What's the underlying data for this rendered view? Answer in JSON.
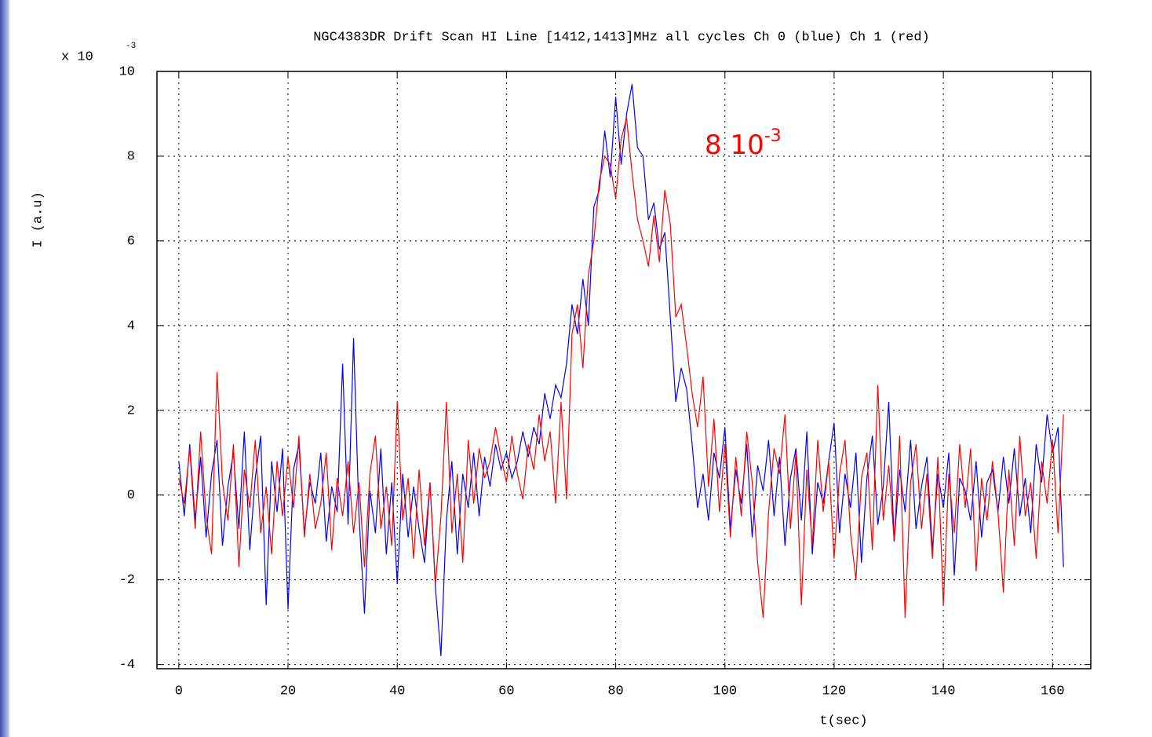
{
  "chart_data": {
    "type": "line",
    "title": "NGC4383DR Drift Scan HI Line [1412,1413]MHz  all cycles Ch 0 (blue) Ch 1 (red)",
    "xlabel": "t(sec)",
    "ylabel": "I (a.u)",
    "y_multiplier": "x 10",
    "y_multiplier_exp": "-3",
    "annotation": "8 10",
    "annotation_exp": "-3",
    "xlim": [
      -4,
      167
    ],
    "ylim": [
      -4.1,
      10
    ],
    "xticks": [
      0,
      20,
      40,
      60,
      80,
      100,
      120,
      140,
      160
    ],
    "yticks": [
      -4,
      -2,
      0,
      2,
      4,
      6,
      8,
      10
    ],
    "grid": true,
    "x": [
      0,
      1,
      2,
      3,
      4,
      5,
      6,
      7,
      8,
      9,
      10,
      11,
      12,
      13,
      14,
      15,
      16,
      17,
      18,
      19,
      20,
      21,
      22,
      23,
      24,
      25,
      26,
      27,
      28,
      29,
      30,
      31,
      32,
      33,
      34,
      35,
      36,
      37,
      38,
      39,
      40,
      41,
      42,
      43,
      44,
      45,
      46,
      47,
      48,
      49,
      50,
      51,
      52,
      53,
      54,
      55,
      56,
      57,
      58,
      59,
      60,
      61,
      62,
      63,
      64,
      65,
      66,
      67,
      68,
      69,
      70,
      71,
      72,
      73,
      74,
      75,
      76,
      77,
      78,
      79,
      80,
      81,
      82,
      83,
      84,
      85,
      86,
      87,
      88,
      89,
      90,
      91,
      92,
      93,
      94,
      95,
      96,
      97,
      98,
      99,
      100,
      101,
      102,
      103,
      104,
      105,
      106,
      107,
      108,
      109,
      110,
      111,
      112,
      113,
      114,
      115,
      116,
      117,
      118,
      119,
      120,
      121,
      122,
      123,
      124,
      125,
      126,
      127,
      128,
      129,
      130,
      131,
      132,
      133,
      134,
      135,
      136,
      137,
      138,
      139,
      140,
      141,
      142,
      143,
      144,
      145,
      146,
      147,
      148,
      149,
      150,
      151,
      152,
      153,
      154,
      155,
      156,
      157,
      158,
      159,
      160,
      161,
      162
    ],
    "series": [
      {
        "color": "#0000ff",
        "values": [
          0.8,
          -0.5,
          1.2,
          -0.6,
          0.9,
          -1.0,
          0.5,
          1.3,
          -1.2,
          0.2,
          1.0,
          -0.8,
          1.5,
          -1.3,
          0.4,
          1.4,
          -2.6,
          0.8,
          -0.4,
          1.1,
          -2.7,
          0.6,
          1.2,
          -0.9,
          0.3,
          -0.2,
          1.0,
          -1.1,
          0.2,
          -0.4,
          3.1,
          -0.7,
          3.7,
          -0.5,
          -2.8,
          0.1,
          -0.9,
          1.1,
          -1.4,
          0.3,
          -2.1,
          0.5,
          -1.0,
          0.2,
          -0.8,
          -1.6,
          0.3,
          -2.2,
          -3.8,
          -0.6,
          0.8,
          -1.4,
          0.5,
          -0.3,
          1.0,
          -0.5,
          0.9,
          0.2,
          1.2,
          0.6,
          1.0,
          0.4,
          0.8,
          1.5,
          0.9,
          1.6,
          1.2,
          2.4,
          1.8,
          2.6,
          2.3,
          3.1,
          4.5,
          3.8,
          5.1,
          4.0,
          6.8,
          7.2,
          8.6,
          7.5,
          9.4,
          7.8,
          9.0,
          9.7,
          8.2,
          8.0,
          6.5,
          6.9,
          5.8,
          6.2,
          4.2,
          2.2,
          3.0,
          2.5,
          1.2,
          -0.3,
          0.5,
          -0.6,
          1.0,
          0.4,
          1.6,
          -0.8,
          0.6,
          -0.2,
          1.2,
          -1.0,
          0.7,
          0.1,
          1.3,
          -0.5,
          0.9,
          -1.2,
          0.4,
          1.1,
          -0.6,
          1.5,
          -1.4,
          0.3,
          -0.2,
          0.8,
          1.7,
          -0.9,
          0.5,
          -0.3,
          1.0,
          -1.6,
          0.4,
          1.4,
          -0.7,
          0.2,
          2.2,
          -1.1,
          0.6,
          -0.4,
          1.3,
          -0.8,
          0.2,
          0.9,
          -1.3,
          0.5,
          -0.3,
          1.0,
          -1.9,
          0.4,
          0.1,
          -0.6,
          0.8,
          -1.0,
          0.3,
          0.6,
          -0.4,
          0.9,
          -0.2,
          1.1,
          -0.5,
          0.4,
          -0.9,
          1.2,
          0.3,
          1.9,
          1.0,
          1.6,
          -1.7
        ]
      },
      {
        "color": "#ff0000",
        "values": [
          0.4,
          -0.2,
          1.1,
          -0.8,
          1.5,
          -0.5,
          -1.4,
          2.9,
          0.3,
          -0.6,
          1.2,
          -1.7,
          0.6,
          -0.3,
          1.3,
          -0.9,
          0.2,
          -1.4,
          0.8,
          -0.5,
          0.9,
          -0.3,
          1.4,
          -1.0,
          0.5,
          -0.8,
          -0.2,
          1.0,
          -1.3,
          0.4,
          -0.5,
          0.8,
          -0.9,
          0.3,
          -1.7,
          0.5,
          1.4,
          -0.8,
          0.2,
          -1.2,
          2.2,
          -0.6,
          0.4,
          -1.5,
          0.6,
          -1.2,
          0.3,
          -2.1,
          -0.5,
          2.2,
          -0.9,
          0.5,
          -1.6,
          1.3,
          -0.2,
          1.1,
          0.4,
          0.8,
          1.6,
          0.9,
          0.3,
          1.4,
          0.5,
          -0.1,
          1.2,
          0.6,
          1.9,
          0.8,
          1.5,
          -0.2,
          2.2,
          -0.1,
          3.8,
          4.5,
          3.0,
          5.2,
          6.0,
          7.4,
          8.0,
          7.8,
          7.0,
          8.4,
          8.9,
          7.6,
          6.5,
          6.0,
          5.4,
          6.6,
          5.5,
          7.2,
          6.4,
          4.2,
          4.5,
          3.5,
          2.4,
          1.6,
          2.8,
          0.2,
          1.8,
          -0.4,
          1.2,
          -1.0,
          0.9,
          -0.5,
          1.5,
          0.3,
          -1.6,
          -2.9,
          -0.4,
          1.1,
          0.5,
          1.9,
          -0.8,
          1.0,
          -2.6,
          0.6,
          -1.2,
          1.3,
          -0.4,
          0.8,
          -1.5,
          0.5,
          1.3,
          -0.9,
          -2.0,
          0.4,
          1.0,
          -1.3,
          2.6,
          -0.6,
          0.7,
          -1.1,
          1.4,
          -2.9,
          0.3,
          1.2,
          -0.8,
          0.5,
          -1.5,
          0.9,
          -2.6,
          0.5,
          -0.9,
          1.2,
          -0.3,
          1.1,
          -1.8,
          0.4,
          -0.6,
          0.8,
          -0.4,
          -2.3,
          0.6,
          -1.2,
          1.4,
          -0.5,
          0.3,
          -1.5,
          0.8,
          -0.2,
          1.3,
          -0.9,
          1.9
        ]
      }
    ]
  }
}
